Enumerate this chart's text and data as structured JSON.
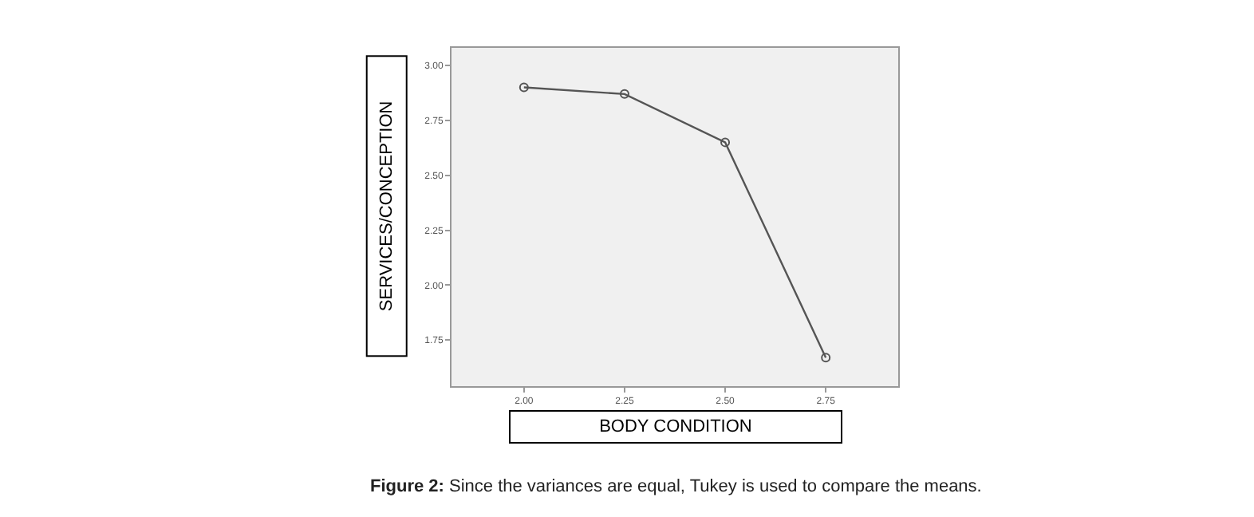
{
  "chart_data": {
    "type": "line",
    "x": [
      2.0,
      2.25,
      2.5,
      2.75
    ],
    "series": [
      {
        "color": "#555555",
        "values": [
          2.9,
          2.87,
          2.65,
          1.67
        ]
      }
    ],
    "xlabel": "BODY CONDITION",
    "ylabel": "SERVICES/CONCEPTION",
    "xlim": [
      1.82,
      2.93
    ],
    "ylim": [
      1.54,
      3.08
    ],
    "xticks": [
      {
        "value": 2.0,
        "label": "2.00"
      },
      {
        "value": 2.25,
        "label": "2.25"
      },
      {
        "value": 2.5,
        "label": "2.50"
      },
      {
        "value": 2.75,
        "label": "2.75"
      }
    ],
    "yticks": [
      {
        "value": 1.75,
        "label": "1.75"
      },
      {
        "value": 2.0,
        "label": "2.00"
      },
      {
        "value": 2.25,
        "label": "2.25"
      },
      {
        "value": 2.5,
        "label": "2.50"
      },
      {
        "value": 2.75,
        "label": "2.75"
      },
      {
        "value": 3.0,
        "label": "3.00"
      }
    ],
    "marker": "circle",
    "line_style": "solid",
    "grid": false,
    "legend": false,
    "annotations": [
      "Figure 2: Since the variances are equal, Tukey is used to compare the means."
    ]
  }
}
